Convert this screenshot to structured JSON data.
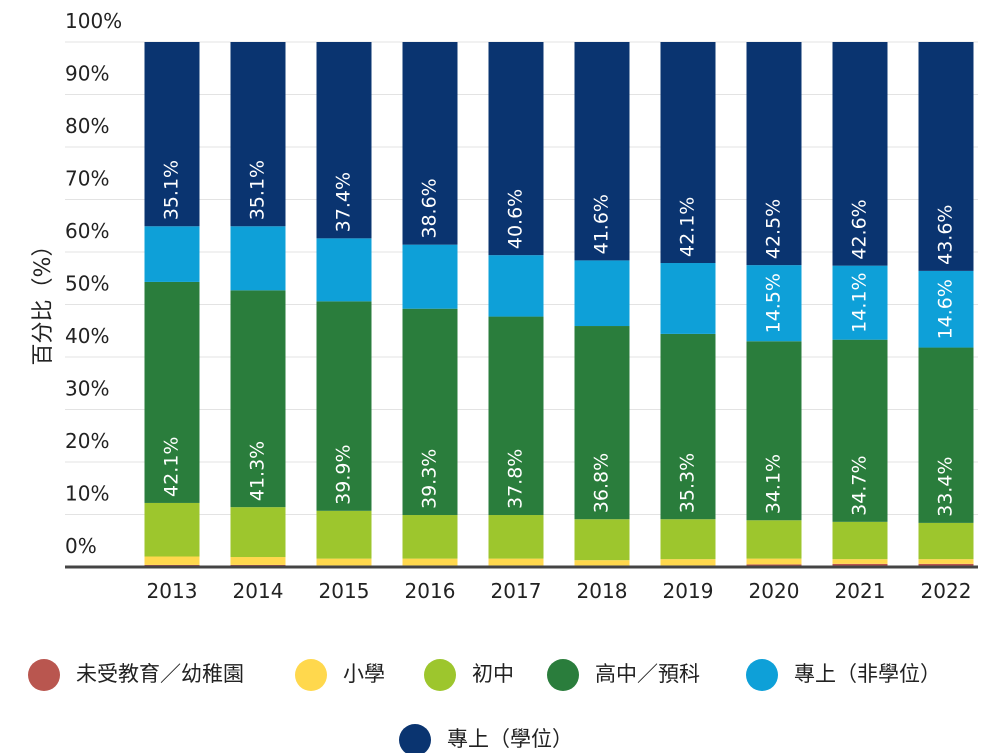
{
  "chart_data": {
    "type": "stacked_bar",
    "ylabel": "百分比（%）",
    "categories": [
      "2013",
      "2014",
      "2015",
      "2016",
      "2017",
      "2018",
      "2019",
      "2020",
      "2021",
      "2022"
    ],
    "ylim": [
      0,
      100
    ],
    "yticks": [
      {
        "value": 0,
        "label": "0%"
      },
      {
        "value": 10,
        "label": "10%"
      },
      {
        "value": 20,
        "label": "20%"
      },
      {
        "value": 30,
        "label": "30%"
      },
      {
        "value": 40,
        "label": "40%"
      },
      {
        "value": 50,
        "label": "50%"
      },
      {
        "value": 60,
        "label": "60%"
      },
      {
        "value": 70,
        "label": "70%"
      },
      {
        "value": 80,
        "label": "80%"
      },
      {
        "value": 90,
        "label": "90%"
      },
      {
        "value": 100,
        "label": "100%"
      }
    ],
    "series": [
      {
        "name": "未受教育／幼稚園",
        "color": "#b9564f",
        "values": [
          0.4,
          0.4,
          0.3,
          0.3,
          0.3,
          0.3,
          0.3,
          0.5,
          0.6,
          0.6
        ]
      },
      {
        "name": "小學",
        "color": "#ffd84d",
        "values": [
          1.6,
          1.5,
          1.3,
          1.3,
          1.3,
          1.0,
          1.2,
          1.1,
          0.9,
          0.9
        ]
      },
      {
        "name": "初中",
        "color": "#9dc62d",
        "values": [
          10.2,
          9.5,
          9.1,
          8.3,
          8.3,
          7.8,
          7.6,
          7.3,
          7.1,
          6.9
        ]
      },
      {
        "name": "高中／預科",
        "color": "#2a7d3c",
        "values": [
          42.1,
          41.3,
          39.9,
          39.3,
          37.8,
          36.8,
          35.3,
          34.1,
          34.7,
          33.4
        ],
        "value_labels": [
          "42.1%",
          "41.3%",
          "39.9%",
          "39.3%",
          "37.8%",
          "36.8%",
          "35.3%",
          "34.1%",
          "34.7%",
          "33.4%"
        ]
      },
      {
        "name": "專上（非學位）",
        "color": "#0ea0d8",
        "values": [
          10.6,
          12.2,
          12.0,
          12.2,
          11.7,
          12.5,
          13.5,
          14.5,
          14.1,
          14.6
        ],
        "value_labels": [
          null,
          null,
          null,
          null,
          null,
          null,
          null,
          "14.5%",
          "14.1%",
          "14.6%"
        ]
      },
      {
        "name": "專上（學位）",
        "color": "#0a3470",
        "values": [
          35.1,
          35.1,
          37.4,
          38.6,
          40.6,
          41.6,
          42.1,
          42.5,
          42.6,
          43.6
        ],
        "value_labels": [
          "35.1%",
          "35.1%",
          "37.4%",
          "38.6%",
          "40.6%",
          "41.6%",
          "42.1%",
          "42.5%",
          "42.6%",
          "43.6%"
        ]
      }
    ]
  }
}
